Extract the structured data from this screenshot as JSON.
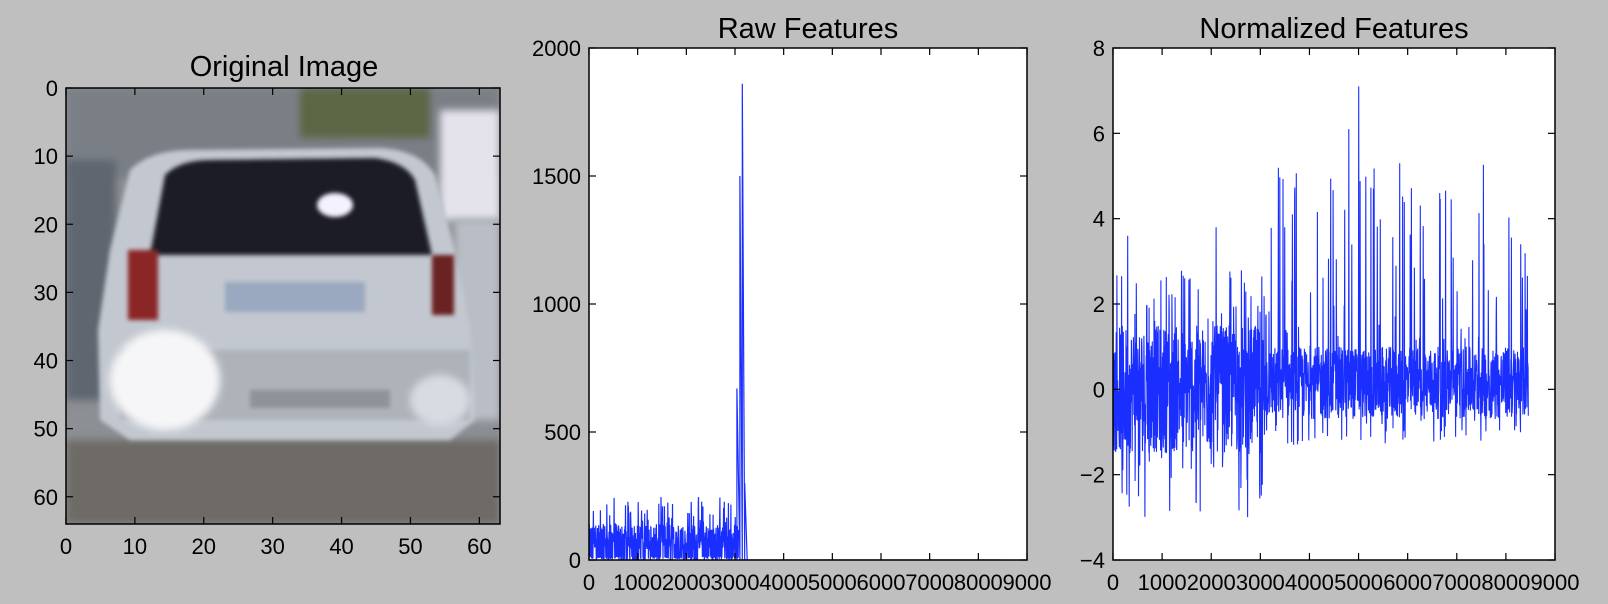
{
  "chart_data": [
    {
      "type": "image",
      "title": "Original Image",
      "xlim": [
        0,
        63
      ],
      "ylim": [
        64,
        0
      ],
      "xticks": [
        "0",
        "10",
        "20",
        "30",
        "40",
        "50",
        "60"
      ],
      "yticks": [
        "0",
        "10",
        "20",
        "30",
        "40",
        "50",
        "60"
      ],
      "image_content": "rear view of a silver hatchback car, 64x64 px",
      "colors": {
        "sky": "#9aa0a8",
        "car_body": "#c9ced6",
        "window": "#1a1c24",
        "taillight": "#8a2020",
        "ground": "#6e6a66",
        "foliage": "#5a6840"
      }
    },
    {
      "type": "line",
      "title": "Raw Features",
      "xlim": [
        0,
        9000
      ],
      "ylim": [
        0,
        2000
      ],
      "xticks": [
        "0",
        "1000",
        "2000",
        "3000",
        "4000",
        "5000",
        "6000",
        "7000",
        "8000",
        "9000"
      ],
      "yticks": [
        "0",
        "500",
        "1000",
        "1500",
        "2000"
      ],
      "series": [
        {
          "color": "#1a2fff",
          "segments": [
            {
              "x_start": 0,
              "x_end": 3072,
              "low": 0,
              "high": 250,
              "typical_high": 140
            },
            {
              "x_start": 3072,
              "x_end": 3250,
              "spikes": [
                [
                  3040,
                  670
                ],
                [
                  3100,
                  1500
                ],
                [
                  3150,
                  1860
                ],
                [
                  3200,
                  300
                ]
              ]
            },
            {
              "x_start": 3250,
              "x_end": 8460,
              "value": 0
            }
          ]
        }
      ]
    },
    {
      "type": "line",
      "title": "Normalized Features",
      "xlim": [
        0,
        9000
      ],
      "ylim": [
        -4,
        8
      ],
      "xticks": [
        "0",
        "1000",
        "2000",
        "3000",
        "4000",
        "5000",
        "6000",
        "7000",
        "8000",
        "9000"
      ],
      "yticks": [
        "−4",
        "−2",
        "0",
        "2",
        "4",
        "6",
        "8"
      ],
      "series": [
        {
          "color": "#1a2fff",
          "segments": [
            {
              "x_start": 0,
              "x_end": 3072,
              "low": -3,
              "high": 3.8,
              "band": [
                -1.5,
                1.5
              ]
            },
            {
              "x_start": 3072,
              "x_end": 8460,
              "low": -1.3,
              "high": 7.1,
              "band": [
                -0.7,
                1.0
              ]
            }
          ],
          "peaks": [
            [
              5000,
              7.1
            ],
            [
              4800,
              6.1
            ],
            [
              5300,
              4.7
            ],
            [
              6650,
              4.6
            ],
            [
              3650,
              4.1
            ],
            [
              300,
              3.6
            ],
            [
              2100,
              3.8
            ],
            [
              8300,
              3.4
            ]
          ]
        }
      ]
    }
  ]
}
